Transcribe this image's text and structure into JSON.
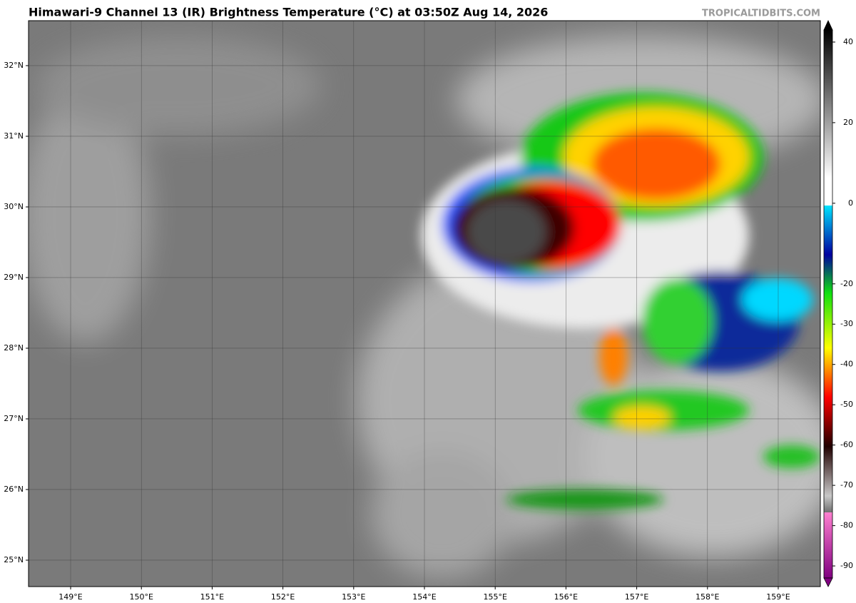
{
  "title": "Himawari-9 Channel 13 (IR) Brightness Temperature (°C) at 03:50Z Aug 14, 2026",
  "watermark": "TROPICALTIDBITS.COM",
  "map": {
    "type": "map",
    "xlim": [
      148.405,
      159.595
    ],
    "ylim": [
      24.626,
      32.636
    ],
    "grid": true,
    "xticks": [
      {
        "value": 149,
        "label": "149°E"
      },
      {
        "value": 150,
        "label": "150°E"
      },
      {
        "value": 151,
        "label": "151°E"
      },
      {
        "value": 152,
        "label": "152°E"
      },
      {
        "value": 153,
        "label": "153°E"
      },
      {
        "value": 154,
        "label": "154°E"
      },
      {
        "value": 155,
        "label": "155°E"
      },
      {
        "value": 156,
        "label": "156°E"
      },
      {
        "value": 157,
        "label": "157°E"
      },
      {
        "value": 158,
        "label": "158°E"
      },
      {
        "value": 159,
        "label": "159°E"
      }
    ],
    "yticks": [
      {
        "value": 25,
        "label": "25°N"
      },
      {
        "value": 26,
        "label": "26°N"
      },
      {
        "value": 27,
        "label": "27°N"
      },
      {
        "value": 28,
        "label": "28°N"
      },
      {
        "value": 29,
        "label": "29°N"
      },
      {
        "value": 30,
        "label": "30°N"
      },
      {
        "value": 31,
        "label": "31°N"
      },
      {
        "value": 32,
        "label": "32°N"
      }
    ]
  },
  "colorbar": {
    "lim": [
      -93,
      43
    ],
    "ticks": [
      40,
      20,
      0,
      -20,
      -30,
      -40,
      -50,
      -60,
      -70,
      -80,
      -90
    ]
  }
}
